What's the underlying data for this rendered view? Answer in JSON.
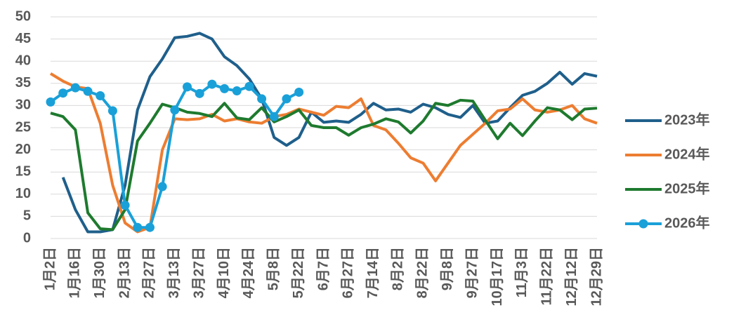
{
  "chart_data": {
    "type": "line",
    "categories": [
      "1月2日",
      null,
      "1月16日",
      null,
      "1月30日",
      null,
      "2月13日",
      null,
      "2月27日",
      null,
      "3月13日",
      null,
      "3月27日",
      null,
      "4月10日",
      null,
      "4月24日",
      null,
      "5月8日",
      null,
      "5月22日",
      null,
      "6月7日",
      null,
      "6月27日",
      null,
      "7月14日",
      null,
      "8月2日",
      null,
      "8月22日",
      null,
      "9月8日",
      null,
      "9月27日",
      null,
      "10月17日",
      null,
      "11月3日",
      null,
      "11月22日",
      null,
      "12月12日",
      null,
      "12月29日"
    ],
    "series": [
      {
        "name": "2023年",
        "color": "#1f5f8b",
        "values": [
          null,
          13.8,
          6.5,
          1.5,
          1.5,
          2,
          12,
          29,
          36.5,
          40.5,
          45.3,
          45.6,
          46.3,
          45,
          41,
          39,
          36,
          31.5,
          22.8,
          21,
          22.8,
          28.5,
          26.2,
          26.5,
          26.2,
          28,
          30.5,
          29,
          29.2,
          28.5,
          30.3,
          29.5,
          28,
          27.3,
          30,
          26,
          26.5,
          29.5,
          32.3,
          33.2,
          35,
          37.5,
          34.8,
          37.2,
          36.6
        ]
      },
      {
        "name": "2024年",
        "color": "#ed7d31",
        "values": [
          37.2,
          35.5,
          34.2,
          33.8,
          26,
          12,
          3.5,
          1.5,
          2.5,
          20,
          27,
          26.8,
          27,
          28,
          26.5,
          27,
          26.3,
          26,
          27.5,
          28,
          29.2,
          28.5,
          27.8,
          29.8,
          29.5,
          31.5,
          25.5,
          24.5,
          21.5,
          18.2,
          17,
          13,
          17,
          21,
          23.5,
          26,
          28.8,
          29.2,
          31.5,
          29,
          28.5,
          29,
          30,
          27,
          26
        ]
      },
      {
        "name": "2025年",
        "color": "#1e7a2e",
        "values": [
          28.3,
          27.5,
          24.5,
          5.8,
          2.2,
          2,
          6.5,
          22,
          26,
          30.3,
          29.5,
          28.5,
          28.2,
          27.5,
          30.5,
          27.2,
          26.8,
          29.5,
          26.3,
          27.5,
          29,
          25.5,
          25,
          25,
          23.3,
          25,
          25.8,
          27,
          26.3,
          23.8,
          26.5,
          30.5,
          30,
          31.2,
          31,
          26.7,
          22.5,
          26,
          23.2,
          26.5,
          29.5,
          29,
          26.8,
          29.2,
          29.4
        ]
      },
      {
        "name": "2026年",
        "color": "#1aa0d8",
        "marker": true,
        "values": [
          30.8,
          32.8,
          34,
          33.2,
          32.2,
          28.8,
          7.5,
          2.5,
          2.5,
          11.7,
          29,
          34.2,
          32.7,
          34.8,
          33.8,
          33.3,
          34.3,
          31.5,
          27.5,
          31.5,
          33,
          null,
          null,
          null,
          null,
          null,
          null,
          null,
          null,
          null,
          null,
          null,
          null,
          null,
          null,
          null,
          null,
          null,
          null,
          null,
          null,
          null,
          null,
          null,
          null
        ]
      }
    ],
    "ylim": [
      0,
      50
    ],
    "yticks": [
      0,
      5,
      10,
      15,
      20,
      25,
      30,
      35,
      40,
      45,
      50
    ],
    "grid": true,
    "legend": "right"
  }
}
